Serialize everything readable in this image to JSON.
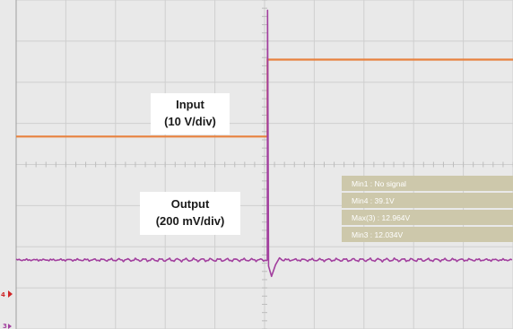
{
  "chart_data": {
    "type": "line",
    "title": "",
    "xlabel": "",
    "ylabel": "",
    "grid": true,
    "x_divisions": 10,
    "y_divisions": 8,
    "xlim": [
      0,
      10
    ],
    "ylim": [
      -4,
      4
    ],
    "step_time_div": 5.06,
    "annotations": [
      {
        "id": "input",
        "lines": [
          "Input",
          "(10 V/div)"
        ]
      },
      {
        "id": "output",
        "lines": [
          "Output",
          "(200 mV/div)"
        ]
      }
    ],
    "series": [
      {
        "name": "Input",
        "color": "#e8813e",
        "before_div": 0.68,
        "after_div": 2.55
      },
      {
        "name": "Output",
        "color": "#a23f9e",
        "baseline_div": -2.32,
        "spike_peak_div": 3.75,
        "undershoot_div": -2.72
      }
    ],
    "measurements": [
      "Min1 : No signal",
      "Min4 : 39.1V",
      "Max(3) : 12.964V",
      "Min3 : 12.034V"
    ],
    "channel_markers": [
      {
        "label": "4",
        "color": "#d0282a"
      },
      {
        "label": "3",
        "color": "#a23f9e"
      }
    ],
    "colors": {
      "background": "#e9e9e9",
      "grid": "#cfcfcf",
      "measurement_panel": "#cdc8ab"
    }
  }
}
